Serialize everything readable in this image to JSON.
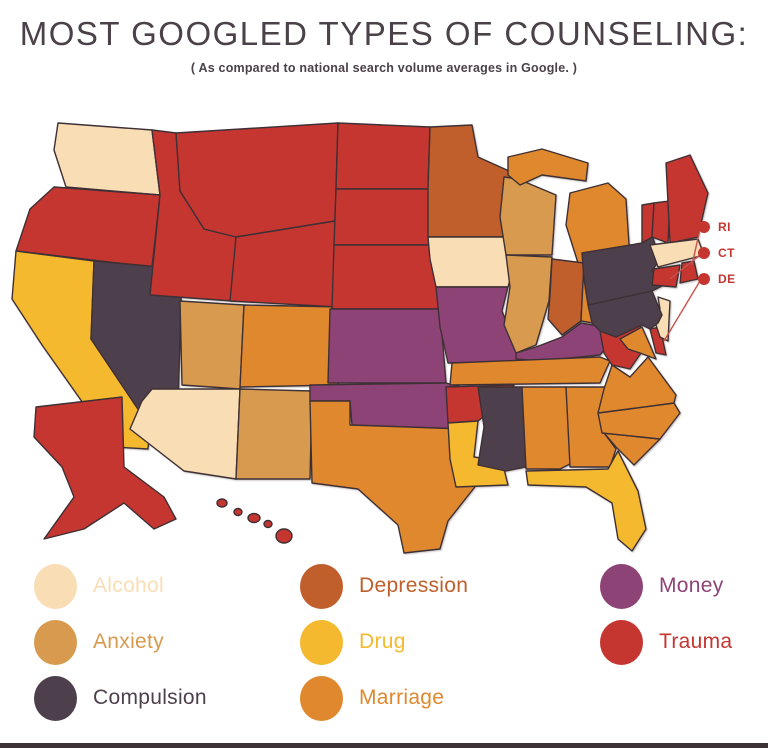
{
  "header": {
    "title": "MOST GOOGLED TYPES OF COUNSELING:",
    "subtitle": "( As compared to national search volume averages in Google. )"
  },
  "legend": {
    "columns": [
      [
        {
          "label": "Alcohol",
          "color": "#f9ddb5"
        },
        {
          "label": "Anxiety",
          "color": "#d79a4e"
        },
        {
          "label": "Compulsion",
          "color": "#4e3f4c"
        }
      ],
      [
        {
          "label": "Depression",
          "color": "#c05f2b"
        },
        {
          "label": "Drug",
          "color": "#f4b92e"
        },
        {
          "label": "Marriage",
          "color": "#e0882d"
        }
      ],
      [
        {
          "label": "Money",
          "color": "#8e4376"
        },
        {
          "label": "Trauma",
          "color": "#c53631"
        }
      ]
    ]
  },
  "callouts": [
    {
      "label": "RI",
      "color": "#c53631"
    },
    {
      "label": "CT",
      "color": "#c53631"
    },
    {
      "label": "DE",
      "color": "#c53631"
    }
  ],
  "colors": {
    "outline": "#3e3034",
    "title_text": "#4b4149",
    "callout_red": "#c53631",
    "bottom_bar": "#3c3336"
  },
  "chart_data": {
    "type": "heatmap",
    "subtype": "us-choropleth-map",
    "title": "Most Googled Types of Counseling",
    "subtitle": "As compared to national search volume averages in Google.",
    "region": "United States (50 states)",
    "categories": {
      "Alcohol": "#f9ddb5",
      "Anxiety": "#d79a4e",
      "Compulsion": "#4e3f4c",
      "Depression": "#c05f2b",
      "Drug": "#f4b92e",
      "Marriage": "#e0882d",
      "Money": "#8e4376",
      "Trauma": "#c53631"
    },
    "state_categories": {
      "WA": "Alcohol",
      "OR": "Trauma",
      "CA": "Drug",
      "NV": "Compulsion",
      "ID": "Trauma",
      "MT": "Trauma",
      "WY": "Trauma",
      "UT": "Anxiety",
      "CO": "Marriage",
      "AZ": "Alcohol",
      "NM": "Anxiety",
      "ND": "Trauma",
      "SD": "Trauma",
      "NE": "Trauma",
      "KS": "Money",
      "OK": "Money",
      "TX": "Marriage",
      "MN": "Depression",
      "IA": "Alcohol",
      "MO": "Money",
      "AR": "Trauma",
      "LA": "Drug",
      "WI": "Anxiety",
      "IL": "Anxiety",
      "MI": "Marriage",
      "IN": "Depression",
      "OH": "Marriage",
      "KY": "Money",
      "TN": "Marriage",
      "MS": "Compulsion",
      "AL": "Marriage",
      "GA": "Marriage",
      "FL": "Drug",
      "SC": "Marriage",
      "NC": "Marriage",
      "VA": "Marriage",
      "WV": "Trauma",
      "MD": "Marriage",
      "DE": "Trauma",
      "NJ": "Alcohol",
      "PA": "Compulsion",
      "NY": "Compulsion",
      "VT": "Trauma",
      "NH": "Trauma",
      "MA": "Alcohol",
      "CT": "Trauma",
      "RI": "Trauma",
      "ME": "Trauma",
      "AK": "Trauma",
      "HI": "Trauma"
    },
    "callout_states": [
      "RI",
      "CT",
      "DE"
    ],
    "legend_position": "bottom"
  }
}
